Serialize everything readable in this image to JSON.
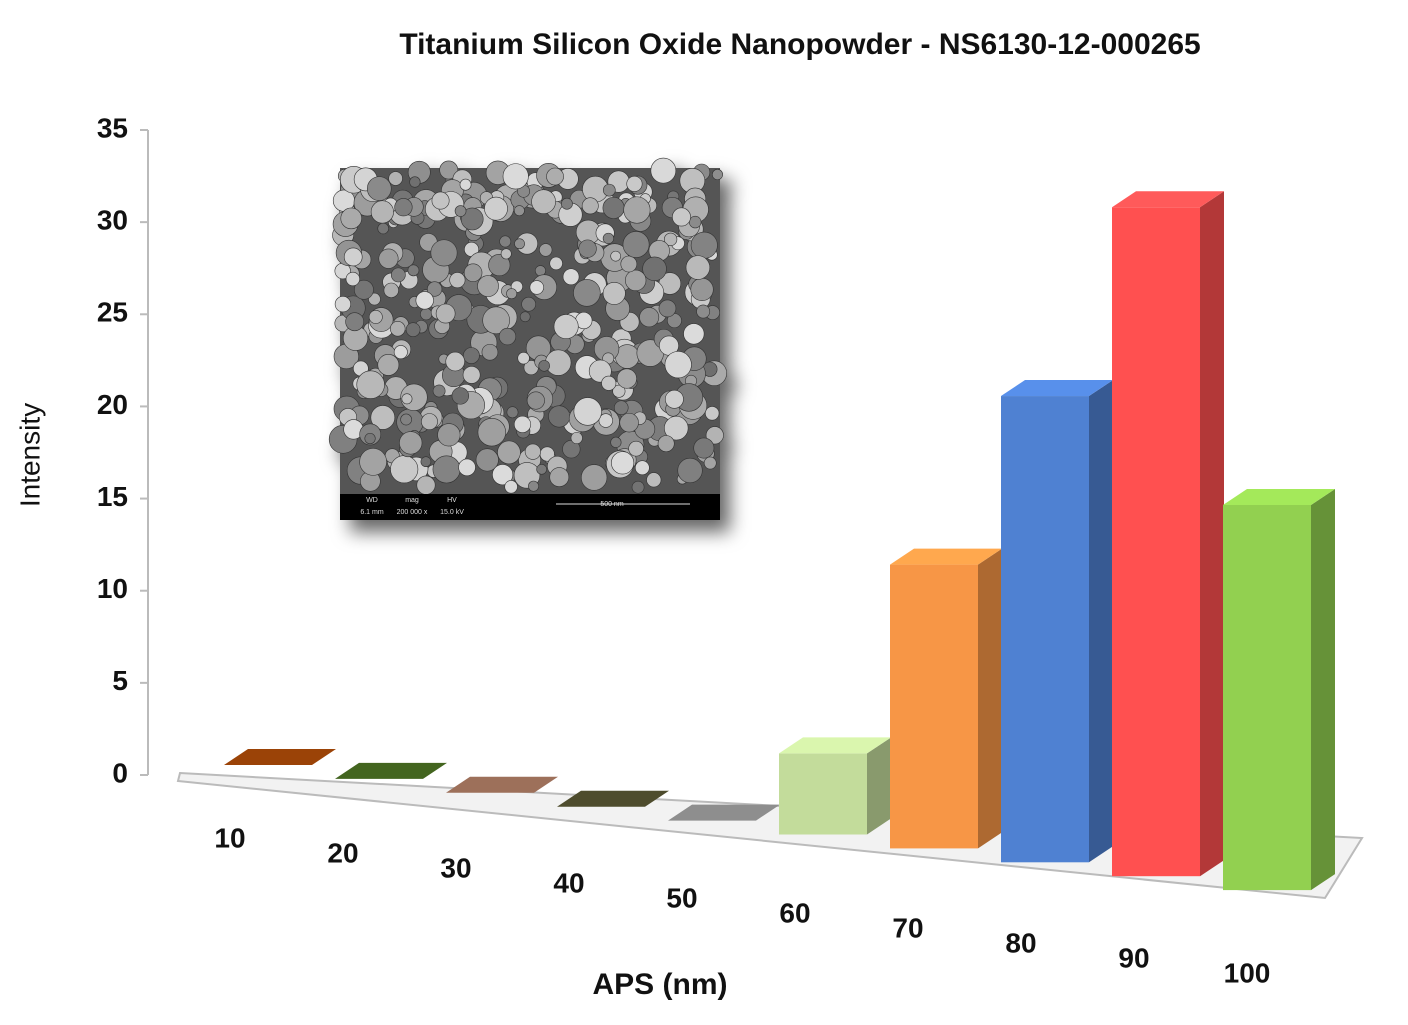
{
  "chart_data": {
    "type": "bar3d",
    "title": "Titanium Silicon Oxide Nanopowder - NS6130-12-000265",
    "y_label": "Intensity",
    "x_label": "APS (nm)",
    "categories": [
      "10",
      "20",
      "30",
      "40",
      "50",
      "60",
      "70",
      "80",
      "90",
      "100"
    ],
    "values": [
      0,
      0,
      0,
      0,
      0,
      4,
      14,
      23,
      33,
      19
    ],
    "colors": [
      "#8a3c06",
      "#3c5a1c",
      "#8c6450",
      "#464428",
      "#7f7f7f",
      "#c3dc9b",
      "#f79646",
      "#4f81d2",
      "#ff5050",
      "#92d050"
    ],
    "ylim": [
      0,
      35
    ],
    "yticks": [
      0,
      5,
      10,
      15,
      20,
      25,
      30,
      35
    ],
    "image_caption": [
      "WD",
      "6.1 mm",
      "mag",
      "200 000 x",
      "HV",
      "15.0 kV",
      "500 nm"
    ]
  }
}
